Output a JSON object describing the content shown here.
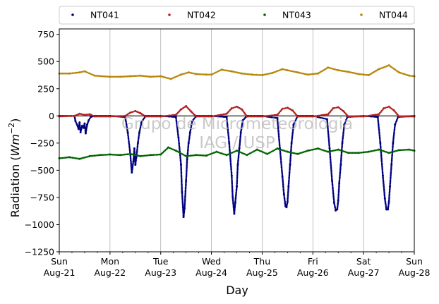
{
  "chart_data": {
    "type": "scatter",
    "xlabel": "Day",
    "ylabel_main": "Radiation (",
    "ylabel_unit": "Wm",
    "ylabel_exp": "−2",
    "ylabel_close": ")",
    "ylim": [
      -1250,
      800
    ],
    "xlim": [
      0,
      7
    ],
    "y_ticks": [
      -1250,
      -1000,
      -750,
      -500,
      -250,
      0,
      250,
      500,
      750
    ],
    "y_tick_labels": [
      "−1250",
      "−1000",
      "−750",
      "−500",
      "−250",
      "0",
      "250",
      "500",
      "750"
    ],
    "x_ticks": [
      0,
      1,
      2,
      3,
      4,
      5,
      6,
      7
    ],
    "x_tick_labels": [
      {
        "day": "Sun",
        "date": "Aug-21"
      },
      {
        "day": "Mon",
        "date": "Aug-22"
      },
      {
        "day": "Tue",
        "date": "Aug-23"
      },
      {
        "day": "Wed",
        "date": "Aug-24"
      },
      {
        "day": "Thu",
        "date": "Aug-25"
      },
      {
        "day": "Fri",
        "date": "Aug-26"
      },
      {
        "day": "Sat",
        "date": "Aug-27"
      },
      {
        "day": "Sun",
        "date": "Aug-28"
      }
    ],
    "grid": "vertical",
    "legend_placement": "top",
    "watermark": [
      "Grupo de Micrometeorologia",
      "IAG / USP"
    ],
    "series": [
      {
        "name": "NT041",
        "color": "#00007f",
        "x": [
          0.0,
          0.3,
          0.32,
          0.35,
          0.38,
          0.4,
          0.42,
          0.45,
          0.48,
          0.5,
          0.52,
          0.55,
          0.58,
          0.62,
          0.7,
          1.0,
          1.3,
          1.35,
          1.4,
          1.43,
          1.46,
          1.48,
          1.5,
          1.52,
          1.55,
          1.58,
          1.62,
          1.7,
          2.0,
          2.3,
          2.35,
          2.4,
          2.42,
          2.45,
          2.47,
          2.5,
          2.52,
          2.55,
          2.58,
          2.62,
          2.7,
          3.0,
          3.3,
          3.35,
          3.4,
          3.42,
          3.45,
          3.47,
          3.5,
          3.52,
          3.55,
          3.58,
          3.62,
          3.7,
          4.0,
          4.3,
          4.35,
          4.4,
          4.43,
          4.46,
          4.48,
          4.5,
          4.52,
          4.55,
          4.58,
          4.62,
          4.7,
          5.0,
          5.28,
          5.33,
          5.38,
          5.42,
          5.45,
          5.48,
          5.5,
          5.52,
          5.55,
          5.58,
          5.62,
          5.68,
          6.0,
          6.28,
          6.33,
          6.38,
          6.42,
          6.45,
          6.48,
          6.5,
          6.52,
          6.55,
          6.58,
          6.62,
          6.68,
          7.0
        ],
        "y": [
          0,
          0,
          -50,
          -80,
          -120,
          -60,
          -150,
          -90,
          -110,
          -70,
          -160,
          -80,
          -40,
          -10,
          0,
          0,
          -10,
          -150,
          -350,
          -520,
          -420,
          -300,
          -450,
          -380,
          -250,
          -150,
          -60,
          0,
          0,
          -10,
          -200,
          -450,
          -700,
          -930,
          -850,
          -600,
          -400,
          -250,
          -150,
          -50,
          0,
          0,
          -10,
          -250,
          -550,
          -750,
          -900,
          -800,
          -650,
          -450,
          -300,
          -150,
          -40,
          0,
          0,
          -20,
          -300,
          -560,
          -720,
          -830,
          -840,
          -790,
          -650,
          -450,
          -250,
          -80,
          0,
          0,
          -30,
          -300,
          -600,
          -800,
          -870,
          -860,
          -780,
          -620,
          -450,
          -250,
          -80,
          -10,
          0,
          -10,
          -250,
          -550,
          -760,
          -860,
          -860,
          -790,
          -650,
          -450,
          -250,
          -80,
          -10,
          0
        ]
      },
      {
        "name": "NT042",
        "color": "#b22222",
        "x": [
          0.0,
          0.3,
          0.4,
          0.5,
          0.6,
          0.7,
          1.0,
          1.3,
          1.4,
          1.5,
          1.6,
          1.7,
          2.0,
          2.3,
          2.4,
          2.5,
          2.6,
          2.7,
          3.0,
          3.3,
          3.4,
          3.5,
          3.6,
          3.7,
          4.0,
          4.3,
          4.4,
          4.5,
          4.6,
          4.7,
          5.0,
          5.3,
          5.4,
          5.5,
          5.6,
          5.7,
          6.0,
          6.3,
          6.4,
          6.5,
          6.6,
          6.7,
          7.0
        ],
        "y": [
          -5,
          0,
          20,
          10,
          15,
          -5,
          -5,
          0,
          30,
          45,
          25,
          -5,
          -5,
          10,
          60,
          90,
          40,
          -5,
          -5,
          20,
          70,
          85,
          60,
          -5,
          -5,
          10,
          65,
          75,
          50,
          -5,
          -5,
          15,
          70,
          80,
          45,
          -5,
          -5,
          15,
          70,
          85,
          50,
          -5,
          -5
        ]
      },
      {
        "name": "NT043",
        "color": "#006400",
        "x": [
          0.0,
          0.2,
          0.4,
          0.6,
          0.8,
          1.0,
          1.2,
          1.4,
          1.6,
          1.8,
          2.0,
          2.15,
          2.3,
          2.5,
          2.7,
          2.9,
          3.1,
          3.3,
          3.5,
          3.7,
          3.9,
          4.1,
          4.3,
          4.5,
          4.7,
          4.9,
          5.1,
          5.3,
          5.5,
          5.7,
          5.9,
          6.1,
          6.3,
          6.5,
          6.7,
          6.9,
          7.0
        ],
        "y": [
          -390,
          -380,
          -395,
          -370,
          -360,
          -355,
          -360,
          -350,
          -370,
          -360,
          -355,
          -290,
          -320,
          -370,
          -360,
          -365,
          -330,
          -360,
          -320,
          -360,
          -310,
          -350,
          -300,
          -330,
          -350,
          -320,
          -300,
          -330,
          -310,
          -340,
          -340,
          -330,
          -310,
          -340,
          -315,
          -310,
          -320
        ]
      },
      {
        "name": "NT044",
        "color": "#b8860b",
        "x": [
          0.0,
          0.2,
          0.4,
          0.5,
          0.7,
          1.0,
          1.2,
          1.4,
          1.6,
          1.8,
          2.0,
          2.2,
          2.4,
          2.55,
          2.7,
          2.9,
          3.0,
          3.2,
          3.4,
          3.6,
          3.8,
          4.0,
          4.2,
          4.4,
          4.5,
          4.7,
          4.9,
          5.1,
          5.3,
          5.5,
          5.7,
          5.9,
          6.1,
          6.3,
          6.5,
          6.7,
          6.9,
          7.0
        ],
        "y": [
          390,
          390,
          400,
          410,
          370,
          360,
          360,
          365,
          370,
          360,
          365,
          340,
          380,
          400,
          385,
          380,
          380,
          425,
          410,
          390,
          380,
          375,
          395,
          430,
          420,
          400,
          380,
          390,
          445,
          420,
          405,
          385,
          375,
          430,
          465,
          400,
          370,
          365
        ]
      }
    ]
  }
}
